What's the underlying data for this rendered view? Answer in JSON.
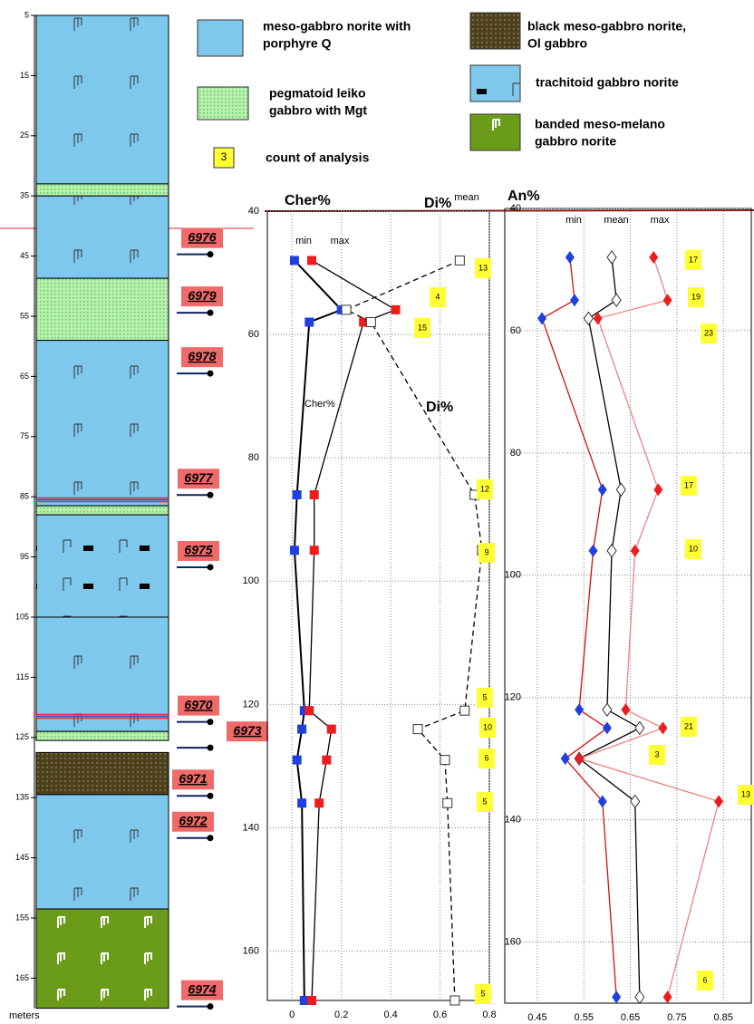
{
  "legend": [
    {
      "label": [
        "meso-gabbro norite with",
        "porphyre Q"
      ],
      "pattern": "porphyre"
    },
    {
      "label": [
        "pegmatoid leiko",
        "gabbro with Mgt"
      ],
      "pattern": "pegmatoid"
    },
    {
      "label": [
        "count of analysis"
      ],
      "sample": "3",
      "pattern": "count"
    },
    {
      "label": [
        "black meso-gabbro norite,",
        "Ol gabbro"
      ],
      "pattern": "black"
    },
    {
      "label": [
        "trachitoid gabbro norite"
      ],
      "pattern": "trachitoid"
    },
    {
      "label": [
        "banded meso-melano",
        "gabbro norite"
      ],
      "pattern": "banded"
    }
  ],
  "chart_data": [
    {
      "type": "column",
      "ylabel": "meters",
      "ylim": [
        5,
        170
      ],
      "yticks": [
        5,
        15,
        25,
        35,
        45,
        55,
        65,
        75,
        85,
        95,
        105,
        115,
        125,
        135,
        145,
        155,
        165
      ],
      "layers": [
        {
          "from": 5,
          "to": 33,
          "rock": 0
        },
        {
          "from": 33,
          "to": 35,
          "rock": 1
        },
        {
          "from": 35,
          "to": 48.7,
          "rock": 0
        },
        {
          "from": 48.7,
          "to": 59,
          "rock": 1
        },
        {
          "from": 59,
          "to": 86.5,
          "rock": 0
        },
        {
          "from": 86.5,
          "to": 88,
          "rock": 1
        },
        {
          "from": 88,
          "to": 105,
          "rock": 4
        },
        {
          "from": 105,
          "to": 124,
          "rock": 0
        },
        {
          "from": 124,
          "to": 125.5,
          "rock": 1
        },
        {
          "from": 127.5,
          "to": 134.5,
          "rock": 3
        },
        {
          "from": 134.5,
          "to": 153.5,
          "rock": 0
        },
        {
          "from": 153.5,
          "to": 170,
          "rock": 5
        }
      ],
      "stripes": [
        85.5,
        121.5
      ],
      "samples": [
        {
          "label": "6976",
          "depth": 42
        },
        {
          "label": "6979",
          "depth": 51.7
        },
        {
          "label": "6978",
          "depth": 61.8
        },
        {
          "label": "6977",
          "depth": 82
        },
        {
          "label": "6975",
          "depth": 94
        },
        {
          "label": "6970",
          "depth": 119.7
        },
        {
          "label": "6973",
          "depth": 124
        },
        {
          "label": "6971",
          "depth": 132
        },
        {
          "label": "6972",
          "depth": 139
        },
        {
          "label": "6974",
          "depth": 167
        }
      ]
    },
    {
      "type": "line",
      "title": "Cher%",
      "title2": "Di%",
      "inner": "Cher%",
      "inner2": "Di%",
      "xlim": [
        -0.1,
        0.8
      ],
      "xticks": [
        0,
        0.2,
        0.4,
        0.6,
        0.8
      ],
      "ylim": [
        40,
        168
      ],
      "yticks": [
        40,
        60,
        80,
        100,
        120,
        140,
        160
      ],
      "grid": true,
      "depth": [
        48,
        56,
        58,
        86,
        95,
        121,
        124,
        129,
        136,
        168
      ],
      "series": [
        {
          "name": "min",
          "color": "#1f3fe0",
          "line": "#000",
          "marker": "square",
          "values": [
            0.01,
            0.2,
            0.07,
            0.02,
            0.01,
            0.05,
            0.04,
            0.02,
            0.04,
            0.05
          ]
        },
        {
          "name": "max",
          "color": "#ee1c1c",
          "line": "#000",
          "marker": "square",
          "values": [
            0.08,
            0.42,
            0.29,
            0.09,
            0.09,
            0.07,
            0.16,
            0.14,
            0.11,
            0.08
          ]
        },
        {
          "name": "mean",
          "color": "#ffffff",
          "line": "#000",
          "marker": "square",
          "dash": true,
          "values": [
            0.68,
            0.22,
            0.32,
            0.74,
            0.77,
            0.7,
            0.51,
            0.62,
            0.63,
            0.66
          ]
        }
      ],
      "counts": [
        13,
        4,
        15,
        12,
        9,
        5,
        10,
        6,
        5,
        5
      ]
    },
    {
      "type": "line",
      "title": "An%",
      "xlim": [
        0.38,
        0.91
      ],
      "xticks": [
        0.45,
        0.55,
        0.65,
        0.75,
        0.85
      ],
      "ylim": [
        40,
        170
      ],
      "yticks": [
        40,
        60,
        80,
        100,
        120,
        140,
        160
      ],
      "grid": true,
      "depth": [
        48,
        55,
        58,
        86,
        96,
        122,
        125,
        130,
        137,
        169
      ],
      "series": [
        {
          "name": "min",
          "color": "#1f3fe0",
          "line": "#d01010",
          "marker": "diamond",
          "values": [
            0.52,
            0.53,
            0.46,
            0.59,
            0.57,
            0.54,
            0.6,
            0.51,
            0.59,
            0.62
          ]
        },
        {
          "name": "mean",
          "color": "#ffffff",
          "line": "#000",
          "marker": "diamond",
          "values": [
            0.61,
            0.62,
            0.56,
            0.63,
            0.61,
            0.6,
            0.67,
            0.54,
            0.66,
            0.67
          ]
        },
        {
          "name": "max",
          "color": "#ee1c1c",
          "line": "#f08080",
          "marker": "diamond",
          "values": [
            0.7,
            0.73,
            0.58,
            0.71,
            0.66,
            0.64,
            0.72,
            0.54,
            0.84,
            0.73
          ]
        }
      ],
      "counts": [
        17,
        19,
        23,
        17,
        10,
        null,
        21,
        3,
        13,
        6
      ]
    }
  ]
}
